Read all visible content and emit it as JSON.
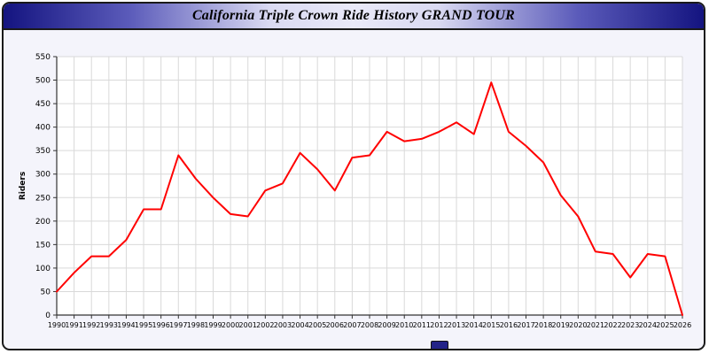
{
  "header": {
    "title": "California Triple Crown Ride History GRAND TOUR"
  },
  "chart_data": {
    "type": "line",
    "title": "California Triple Crown Ride History GRAND TOUR",
    "xlabel": "",
    "ylabel": "Riders",
    "ylim": [
      0,
      550
    ],
    "ytick_step": 50,
    "grid": true,
    "legend": "none",
    "line_color": "#ff0000",
    "grid_color": "#d9d9d9",
    "axis_color": "#333333",
    "plot_bg": "#ffffff",
    "x": [
      1990,
      1991,
      1992,
      1993,
      1994,
      1995,
      1996,
      1997,
      1998,
      1999,
      2000,
      2001,
      2002,
      2003,
      2004,
      2005,
      2006,
      2007,
      2008,
      2009,
      2010,
      2011,
      2012,
      2013,
      2014,
      2015,
      2016,
      2017,
      2018,
      2019,
      2020,
      2021,
      2022,
      2023,
      2024,
      2025,
      2026
    ],
    "series": [
      {
        "name": "Riders",
        "values": [
          50,
          90,
          125,
          125,
          160,
          225,
          225,
          340,
          290,
          250,
          215,
          210,
          265,
          280,
          345,
          310,
          265,
          335,
          340,
          390,
          370,
          375,
          390,
          410,
          385,
          495,
          390,
          360,
          325,
          255,
          210,
          135,
          130,
          80,
          130,
          125,
          0
        ]
      }
    ]
  }
}
